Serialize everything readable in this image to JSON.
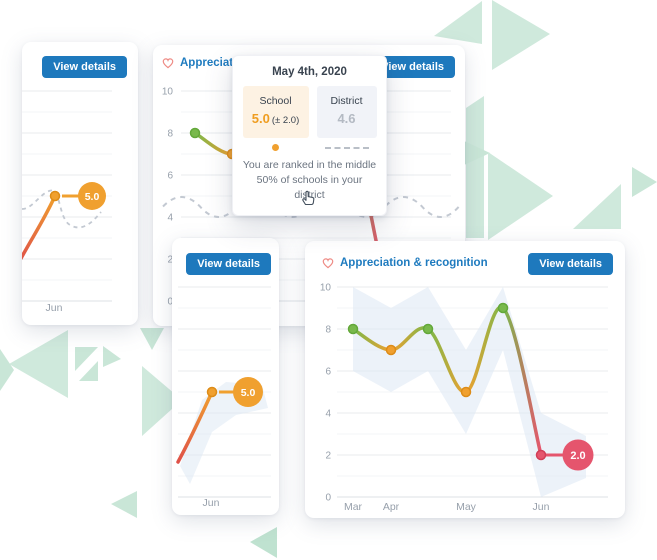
{
  "colors": {
    "accent_blue": "#1e79bd",
    "title_blue": "#1f7bbf",
    "heart_red": "#ee8b85",
    "green": "#79b94c",
    "green_dark": "#63a83a",
    "orange": "#f0a02f",
    "orange_dark": "#dd8c18",
    "red": "#e5556d",
    "red_dark": "#d13e57",
    "spark_red": "#df5149",
    "band_blue": "#dce8f4",
    "grid_major": "#e8ebee",
    "grid_minor": "#f3f5f7",
    "axis_line": "#dde1e6",
    "axis_text": "#97a0ab",
    "dashed_gray": "#c3c9d2",
    "mint_1": "#cfe9dc",
    "mint_2": "#c9e6d7",
    "mint_3": "#bfe2d0",
    "school_bg": "#fdf2e3",
    "district_bg": "#f1f3f8",
    "school_value": "#ef9d20",
    "district_value": "#b4bac3"
  },
  "cards": {
    "back_left": {
      "button_label": "View details"
    },
    "back_main": {
      "title": "Appreciation & recognition",
      "button_label": "View details"
    },
    "front_left": {
      "button_label": "View details"
    },
    "front_main": {
      "title": "Appreciation & recognition",
      "button_label": "View details"
    }
  },
  "tooltip": {
    "date": "May 4th, 2020",
    "school_label": "School",
    "school_value": "5.0",
    "school_range": "(± 2.0)",
    "district_label": "District",
    "district_value": "4.6",
    "footer_line1": "You are ranked in the middle",
    "footer_line2": "50% of schools in your district"
  },
  "chart_data": [
    {
      "type": "line",
      "panel": "front-main",
      "title": "Appreciation & recognition",
      "values": [
        8,
        7,
        8,
        5,
        9,
        2
      ],
      "point_colors": [
        "green",
        "orange",
        "green",
        "orange",
        "green",
        "red"
      ],
      "month_ticks": [
        {
          "label": "Mar",
          "index": 0
        },
        {
          "label": "Apr",
          "index": 1
        },
        {
          "label": "May",
          "index": 3
        },
        {
          "label": "Jun",
          "index": 5
        }
      ],
      "y_ticks": [
        10,
        8,
        6,
        4,
        2,
        0
      ],
      "ylim": [
        0,
        10
      ],
      "band_upper": [
        10,
        9,
        10,
        7,
        10,
        4
      ],
      "band_lower": [
        6,
        5,
        6,
        3,
        7,
        0
      ],
      "end_badge": "2.0"
    },
    {
      "type": "line",
      "panel": "back-main",
      "title": "Appreciation & recognition",
      "values": [
        8,
        7,
        8,
        5,
        9,
        2
      ],
      "point_colors": [
        "green",
        "orange",
        "green",
        "orange",
        "green",
        "red"
      ],
      "y_ticks": [
        10,
        8,
        6,
        4,
        2,
        0
      ],
      "ylim": [
        0,
        10
      ],
      "district_line": "dashed",
      "hover_index": 3,
      "hover_value": 5.0
    },
    {
      "type": "line-spark",
      "panel": "back-left",
      "last_value": 5.0,
      "badge": "5.0",
      "x_label": "Jun",
      "district_line": "dashed"
    },
    {
      "type": "line-spark",
      "panel": "front-left",
      "last_value": 5.0,
      "badge": "5.0",
      "x_label": "Jun",
      "band": true
    }
  ]
}
